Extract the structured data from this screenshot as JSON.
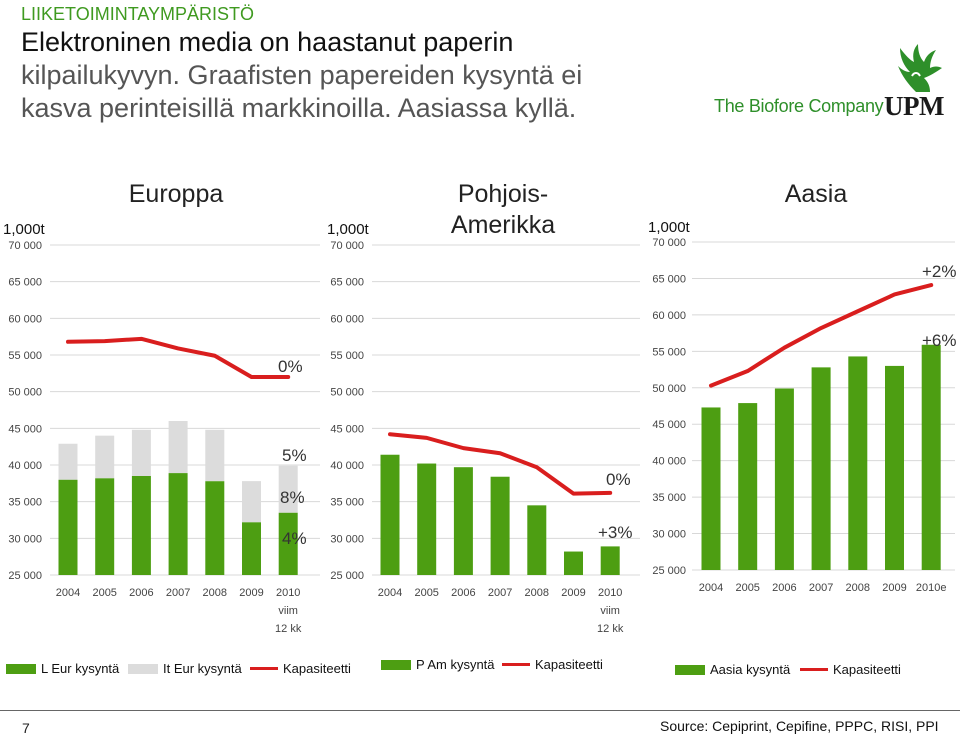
{
  "header": {
    "section_label": "LIIKETOIMINTAYMPÄRISTÖ",
    "title_line1": "Elektroninen media on haastanut paperin",
    "title_line2": "kilpailukyvyn. Graafisten papereiden kysyntä ei",
    "title_line3": "kasva perinteisillä markkinoilla. Aasiassa kyllä."
  },
  "brand": {
    "tagline": "The Biofore Company",
    "logo_text": "UPM",
    "colors": {
      "brand_green": "#2e8f2a",
      "logo_dark": "#1a1a1a"
    }
  },
  "colors": {
    "bar_green": "#4d9e12",
    "bar_grey": "#dcdcdc",
    "line_red": "#d91e1e"
  },
  "chart_data": [
    {
      "type": "bar",
      "title": "Europpa",
      "ylabel": "1,000t",
      "ylim": [
        25000,
        70000
      ],
      "yticks": [
        "70 000",
        "65 000",
        "60 000",
        "55 000",
        "50 000",
        "45 000",
        "40 000",
        "35 000",
        "30 000",
        "25 000"
      ],
      "categories": [
        "2004",
        "2005",
        "2006",
        "2007",
        "2008",
        "2009",
        "2010"
      ],
      "category_sublabels": [
        "",
        "",
        "",
        "",
        "",
        "",
        "viim\n12 kk"
      ],
      "series": [
        {
          "name": "L Eur kysyntä",
          "kind": "bar",
          "stack": "demand",
          "values": [
            38000,
            38200,
            38500,
            38900,
            37800,
            32200,
            33500
          ]
        },
        {
          "name": "It Eur kysyntä",
          "kind": "bar",
          "stack": "demand",
          "values": [
            4900,
            5800,
            6300,
            7100,
            7000,
            5600,
            6400
          ]
        },
        {
          "name": "Kapasiteetti",
          "kind": "line",
          "values": [
            56800,
            56900,
            57200,
            55900,
            54900,
            52000,
            52000
          ]
        }
      ],
      "annotations": [
        "0%",
        "5%",
        "8%",
        "4%"
      ]
    },
    {
      "type": "bar",
      "title": "Pohjois-Amerikka",
      "title_line1": "Pohjois-",
      "title_line2": "Amerikka",
      "ylabel": "1,000t",
      "ylim": [
        25000,
        70000
      ],
      "yticks": [
        "70 000",
        "65 000",
        "60 000",
        "55 000",
        "50 000",
        "45 000",
        "40 000",
        "35 000",
        "30 000",
        "25 000"
      ],
      "categories": [
        "2004",
        "2005",
        "2006",
        "2007",
        "2008",
        "2009",
        "2010"
      ],
      "category_sublabels": [
        "",
        "",
        "",
        "",
        "",
        "",
        "viim\n12 kk"
      ],
      "series": [
        {
          "name": "P Am kysyntä",
          "kind": "bar",
          "values": [
            41400,
            40200,
            39700,
            38400,
            34500,
            28200,
            28900
          ]
        },
        {
          "name": "Kapasiteetti",
          "kind": "line",
          "values": [
            44200,
            43700,
            42300,
            41600,
            39700,
            36100,
            36200
          ]
        }
      ],
      "annotations": [
        "0%",
        "+3%"
      ]
    },
    {
      "type": "bar",
      "title": "Aasia",
      "ylabel": "1,000t",
      "ylim": [
        25000,
        70000
      ],
      "yticks": [
        "70 000",
        "65 000",
        "60 000",
        "55 000",
        "50 000",
        "45 000",
        "40 000",
        "35 000",
        "30 000",
        "25 000"
      ],
      "categories": [
        "2004",
        "2005",
        "2006",
        "2007",
        "2008",
        "2009",
        "2010e"
      ],
      "category_sublabels": [
        "",
        "",
        "",
        "",
        "",
        "",
        ""
      ],
      "series": [
        {
          "name": "Aasia kysyntä",
          "kind": "bar",
          "values": [
            47300,
            47900,
            49900,
            52800,
            54300,
            53000,
            55900
          ]
        },
        {
          "name": "Kapasiteetti",
          "kind": "line",
          "values": [
            50300,
            52300,
            55500,
            58200,
            60500,
            62800,
            64100
          ]
        }
      ],
      "annotations": [
        "+2%",
        "+6%"
      ]
    }
  ],
  "legend": {
    "l_eur": "L Eur kysyntä",
    "it_eur": "It Eur kysyntä",
    "cap1": "Kapasiteetti",
    "pam": "P Am kysyntä",
    "cap2": "Kapasiteetti",
    "asia": "Aasia kysyntä",
    "cap3": "Kapasiteetti"
  },
  "footer": {
    "page_number": "7",
    "source": "Source: Cepiprint, Cepifine, PPPC, RISI, PPI"
  }
}
